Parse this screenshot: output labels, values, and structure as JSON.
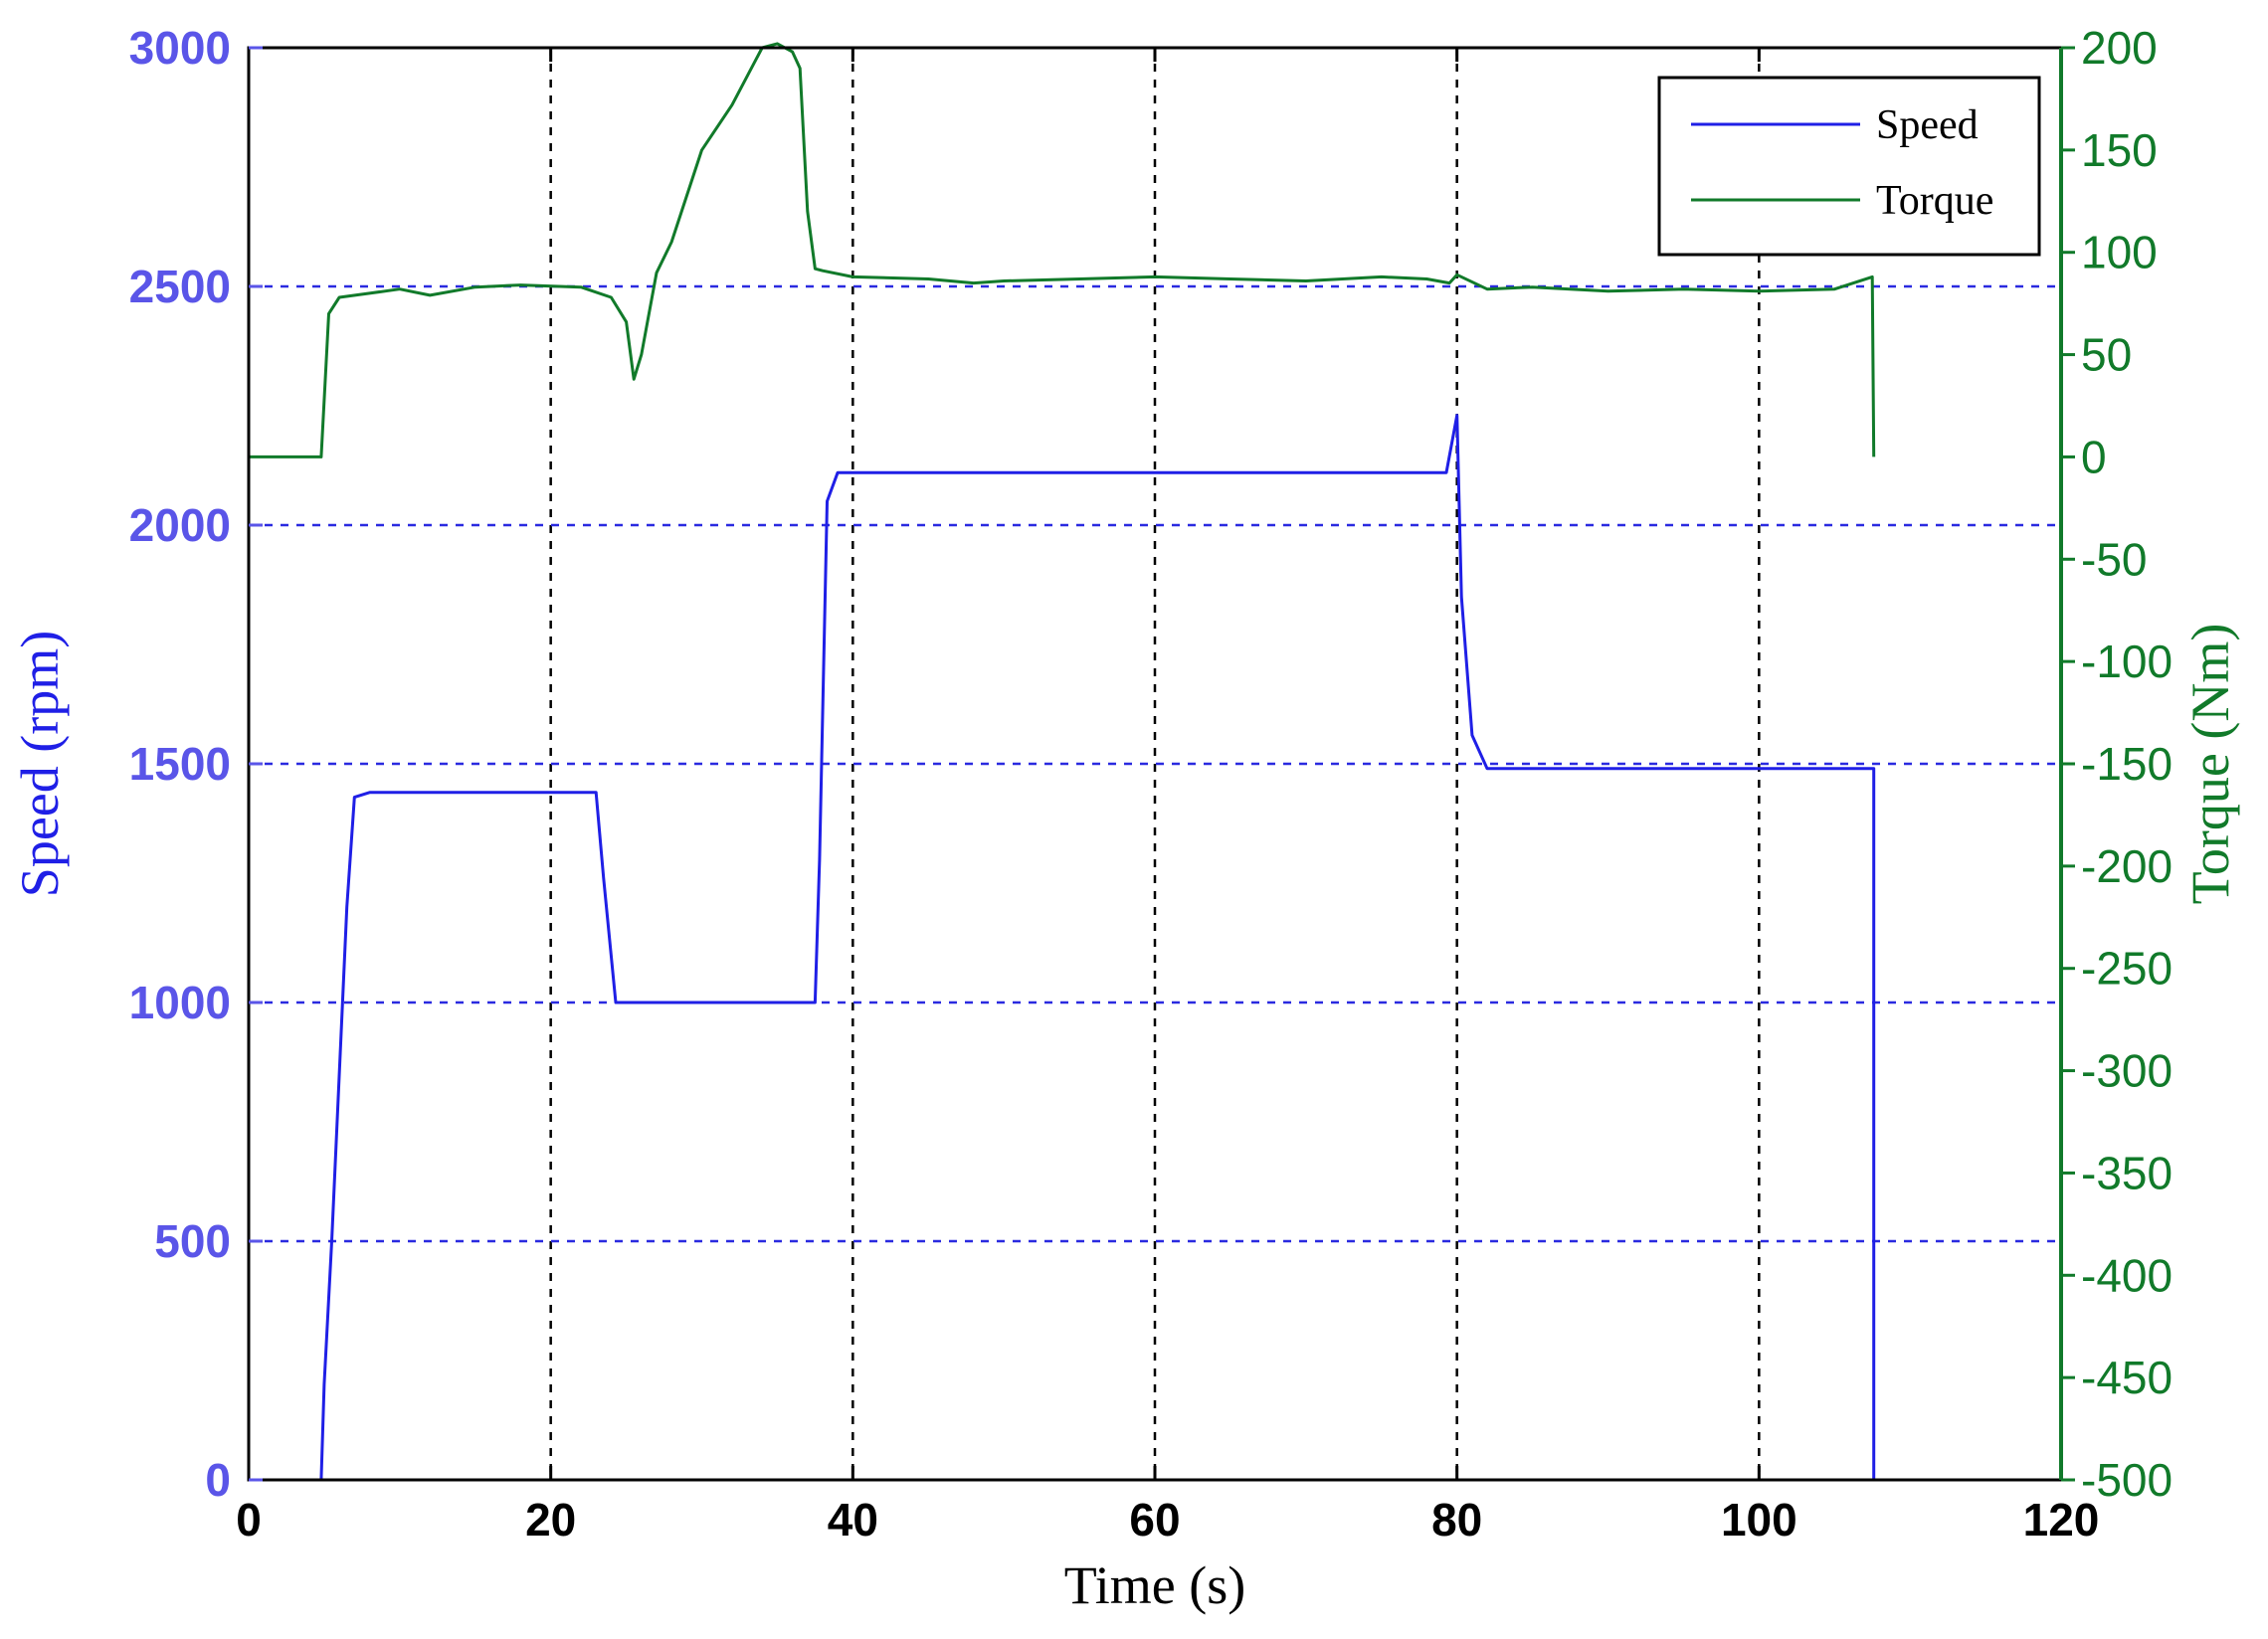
{
  "chart_data": {
    "type": "line",
    "xlabel": "Time (s)",
    "ylabel_left": "Speed (rpm)",
    "ylabel_right": "Torque (Nm)",
    "xlim": [
      0,
      120
    ],
    "ylim_left": [
      0,
      3000
    ],
    "ylim_right": [
      -500,
      200
    ],
    "xticks": [
      "0",
      "20",
      "40",
      "60",
      "80",
      "100",
      "120"
    ],
    "yticks_left": [
      "0",
      "500",
      "1000",
      "1500",
      "2000",
      "2500",
      "3000"
    ],
    "yticks_right": [
      "-500",
      "-450",
      "-400",
      "-350",
      "-300",
      "-250",
      "-200",
      "-150",
      "-100",
      "-50",
      "0",
      "50",
      "100",
      "150",
      "200"
    ],
    "grid": true,
    "legend_position": "top-right",
    "colors": {
      "speed": "#1f1fe6",
      "torque": "#117a2a",
      "left_axis": "#5a55e8",
      "right_axis": "#117a2a"
    },
    "series": [
      {
        "name": "Speed",
        "axis": "left",
        "x": [
          0,
          4.8,
          5,
          5.5,
          6.5,
          7,
          8,
          23,
          23.5,
          24.3,
          25,
          37.5,
          37.8,
          38.3,
          39,
          45,
          79.3,
          80,
          80.3,
          81,
          82,
          100,
          107.6,
          107.6
        ],
        "y": [
          0,
          0,
          200,
          500,
          1200,
          1430,
          1440,
          1440,
          1260,
          1000,
          1000,
          1000,
          1300,
          2050,
          2110,
          2110,
          2110,
          2230,
          1850,
          1560,
          1490,
          1490,
          1490,
          0
        ]
      },
      {
        "name": "Torque",
        "axis": "right",
        "x": [
          0,
          4.8,
          5.3,
          6,
          8,
          10,
          12,
          15,
          18,
          22,
          24,
          25,
          25.5,
          26,
          27,
          28,
          30,
          32,
          34,
          35,
          36,
          36.5,
          37,
          37.5,
          38,
          40,
          45,
          48,
          50,
          55,
          60,
          65,
          70,
          75,
          78,
          79.5,
          80,
          82,
          85,
          90,
          95,
          100,
          105,
          107.5,
          107.6
        ],
        "y": [
          0,
          0,
          70,
          78,
          80,
          82,
          79,
          83,
          84,
          83,
          78,
          66,
          38,
          50,
          90,
          105,
          150,
          172,
          200,
          202,
          198,
          190,
          120,
          92,
          91,
          88,
          87,
          85,
          86,
          87,
          88,
          87,
          86,
          88,
          87,
          85,
          89,
          82,
          83,
          81,
          82,
          81,
          82,
          88,
          0
        ]
      }
    ]
  }
}
